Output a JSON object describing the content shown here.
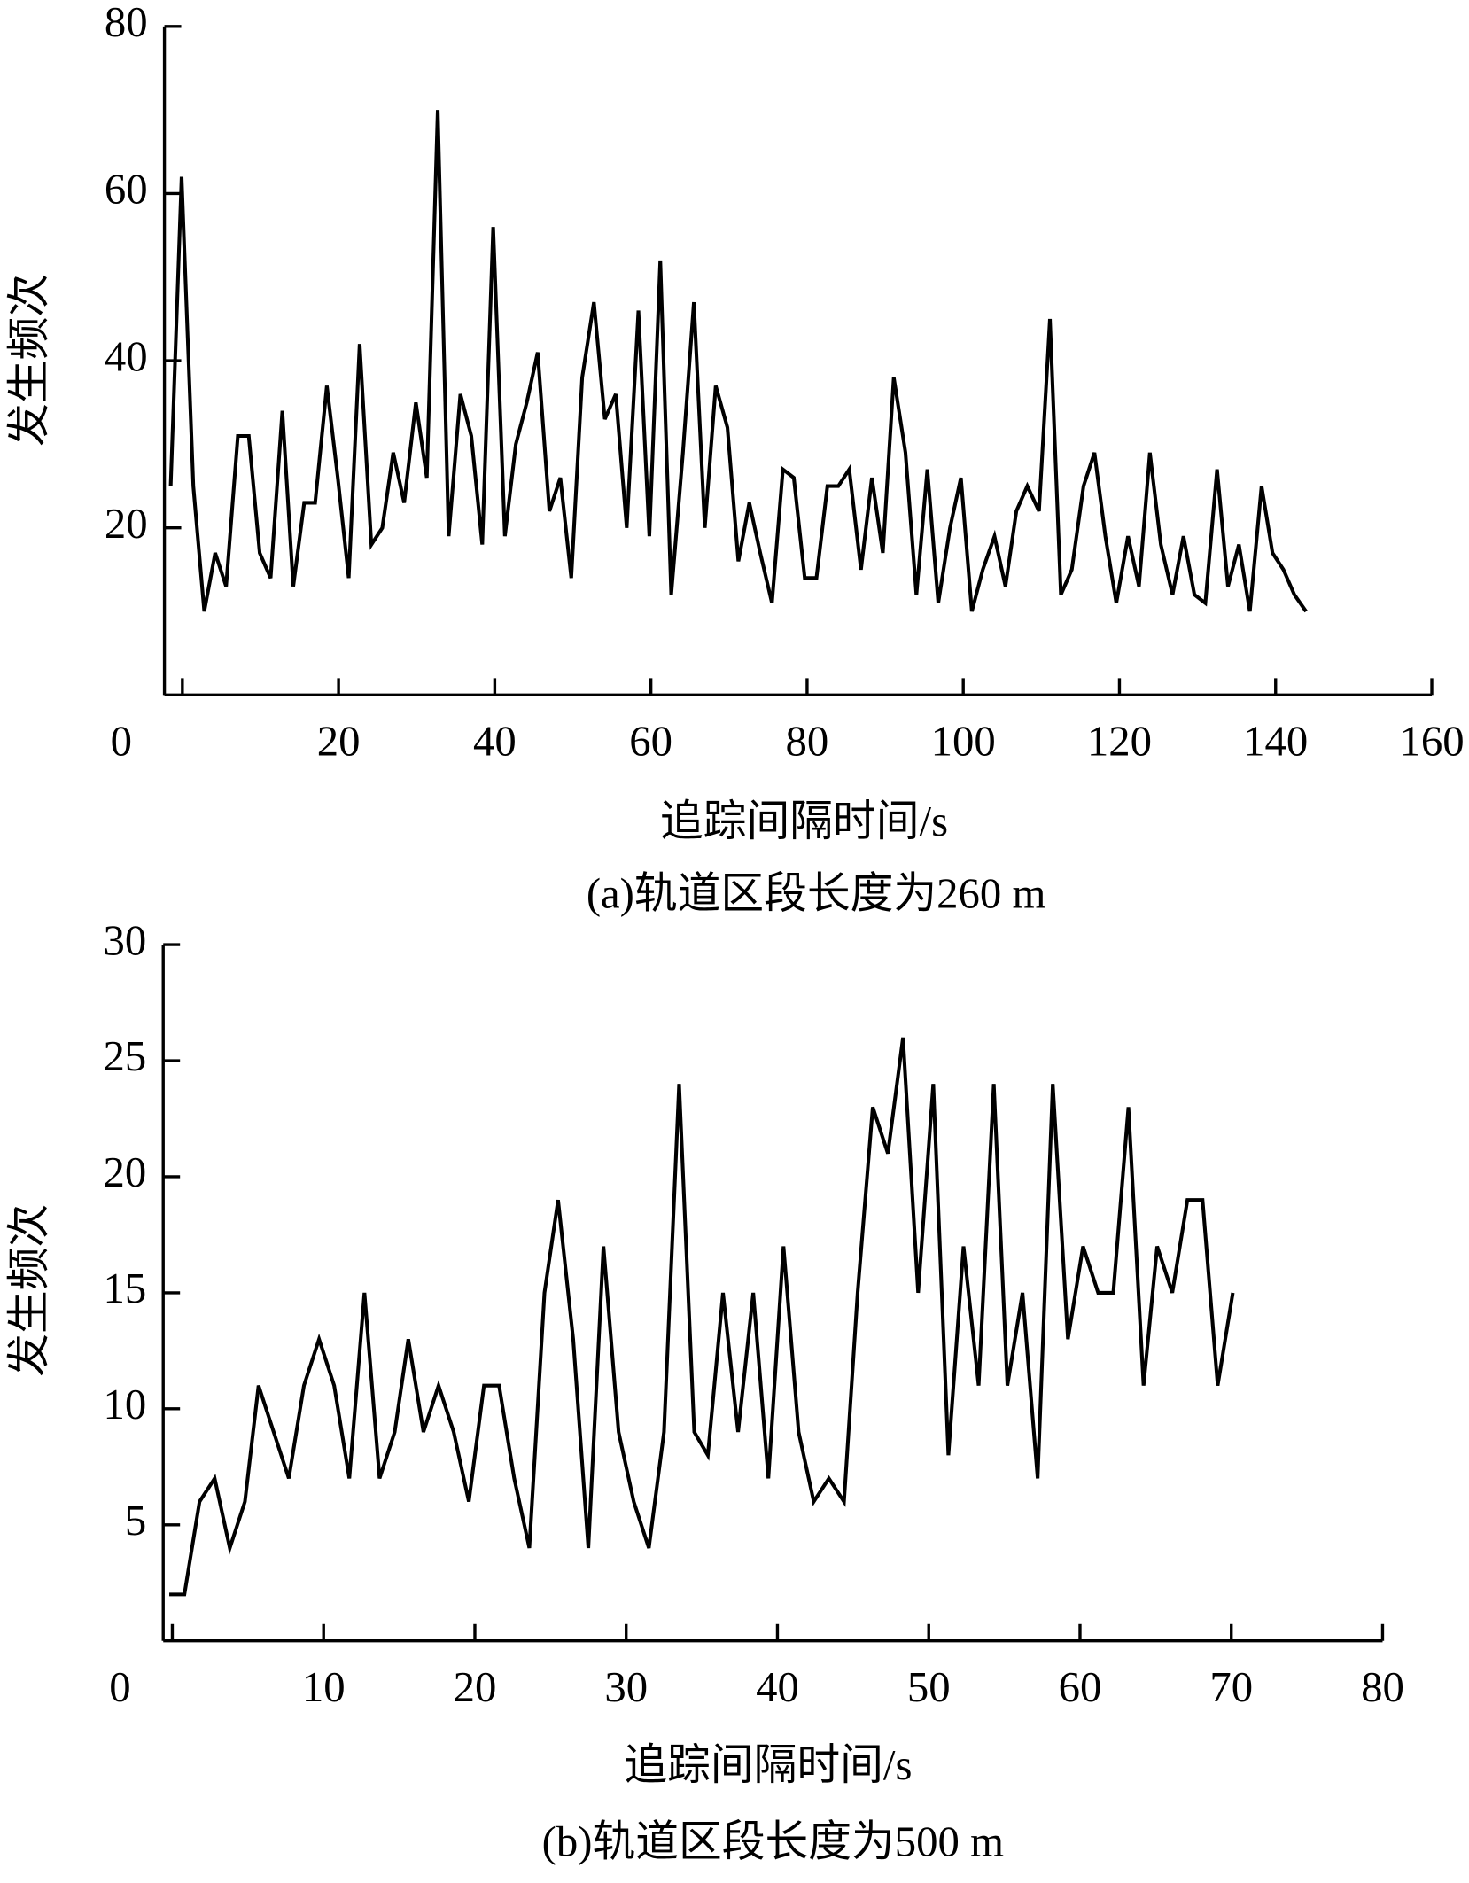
{
  "chart_data": [
    {
      "type": "line",
      "caption": "(a)轨道区段长度为260 m",
      "x_label": "追踪间隔时间/s",
      "y_label": "发生频次",
      "color": "#000000",
      "x": [
        -1.5,
        -0.1,
        1.4,
        2.8,
        4.2,
        5.6,
        7.1,
        8.5,
        9.9,
        11.3,
        12.8,
        14.2,
        15.6,
        17.0,
        18.5,
        19.9,
        21.3,
        22.7,
        24.2,
        25.6,
        27.0,
        28.4,
        29.9,
        31.3,
        32.7,
        34.1,
        35.6,
        37.0,
        38.4,
        39.8,
        41.3,
        42.7,
        44.1,
        45.5,
        47.0,
        48.4,
        49.8,
        51.2,
        52.7,
        54.1,
        55.5,
        56.9,
        58.4,
        59.8,
        61.2,
        62.6,
        64.1,
        65.5,
        66.9,
        68.3,
        69.8,
        71.2,
        72.6,
        74.0,
        75.5,
        76.9,
        78.3,
        79.7,
        81.2,
        82.6,
        84.0,
        85.4,
        86.9,
        88.3,
        89.7,
        91.1,
        92.6,
        94.0,
        95.4,
        96.8,
        98.3,
        99.7,
        101.1,
        102.5,
        104.0,
        105.4,
        106.8,
        108.2,
        109.7,
        111.1,
        112.5,
        113.9,
        115.4,
        116.8,
        118.2,
        119.6,
        121.1,
        122.5,
        123.9,
        125.3,
        126.8,
        128.2,
        129.6,
        131.0,
        132.5,
        133.9,
        135.3,
        136.7,
        138.2,
        139.6,
        141.0,
        142.4,
        143.9
      ],
      "values": [
        25,
        62,
        25,
        10,
        17,
        13,
        31,
        31,
        17,
        14,
        34,
        13,
        23,
        23,
        37,
        26,
        14,
        42,
        18,
        20,
        29,
        23,
        35,
        26,
        70,
        19,
        36,
        31,
        18,
        56,
        19,
        30,
        35,
        41,
        22,
        26,
        14,
        38,
        47,
        33,
        36,
        20,
        46,
        19,
        52,
        12,
        29,
        47,
        20,
        37,
        32,
        16,
        23,
        17,
        11,
        27,
        26,
        14,
        14,
        25,
        25,
        27,
        15,
        26,
        17,
        38,
        29,
        12,
        27,
        11,
        20,
        26,
        10,
        15,
        19,
        13,
        22,
        25,
        22,
        45,
        12,
        15,
        25,
        29,
        19,
        11,
        19,
        13,
        29,
        18,
        12,
        19,
        12,
        11,
        27,
        13,
        18,
        10,
        25,
        17,
        15,
        12,
        10
      ],
      "xlim": [
        -2.3,
        160
      ],
      "ylim": [
        0,
        80
      ],
      "xticks": [
        0,
        20,
        40,
        60,
        80,
        100,
        120,
        140,
        160
      ],
      "yticks": [
        20,
        40,
        60,
        80
      ]
    },
    {
      "type": "line",
      "caption": "(b)轨道区段长度为500 m",
      "x_label": "追踪间隔时间/s",
      "y_label": "发生频次",
      "color": "#000000",
      "x": [
        -0.2,
        0.8,
        1.8,
        2.8,
        3.8,
        4.8,
        5.7,
        6.7,
        7.7,
        8.7,
        9.7,
        10.7,
        11.7,
        12.7,
        13.7,
        14.7,
        15.6,
        16.6,
        17.6,
        18.6,
        19.6,
        20.6,
        21.6,
        22.6,
        23.6,
        24.6,
        25.5,
        26.5,
        27.5,
        28.5,
        29.5,
        30.5,
        31.5,
        32.5,
        33.5,
        34.5,
        35.4,
        36.4,
        37.4,
        38.4,
        39.4,
        40.4,
        41.4,
        42.4,
        43.4,
        44.4,
        45.3,
        46.3,
        47.3,
        48.3,
        49.3,
        50.3,
        51.3,
        52.3,
        53.3,
        54.3,
        55.2,
        56.2,
        57.2,
        58.2,
        59.2,
        60.2,
        61.2,
        62.2,
        63.2,
        64.2,
        65.1,
        66.1,
        67.1,
        68.1,
        69.1,
        70.1
      ],
      "values": [
        2,
        2,
        6,
        7,
        4,
        6,
        11,
        9,
        7,
        11,
        13,
        11,
        7,
        15,
        7,
        9,
        13,
        9,
        11,
        9,
        6,
        11,
        11,
        7,
        4,
        15,
        19,
        13,
        4,
        17,
        9,
        6,
        4,
        9,
        24,
        9,
        8,
        15,
        9,
        15,
        7,
        17,
        9,
        6,
        7,
        6,
        15,
        23,
        21,
        26,
        15,
        24,
        8,
        17,
        11,
        24,
        11,
        15,
        7,
        24,
        13,
        17,
        15,
        15,
        23,
        11,
        17,
        15,
        19,
        19,
        11,
        15
      ],
      "xlim": [
        -0.6,
        80
      ],
      "ylim": [
        0,
        30
      ],
      "xticks": [
        0,
        10,
        20,
        30,
        40,
        50,
        60,
        70,
        80
      ],
      "yticks": [
        5,
        10,
        15,
        20,
        25,
        30
      ]
    }
  ]
}
